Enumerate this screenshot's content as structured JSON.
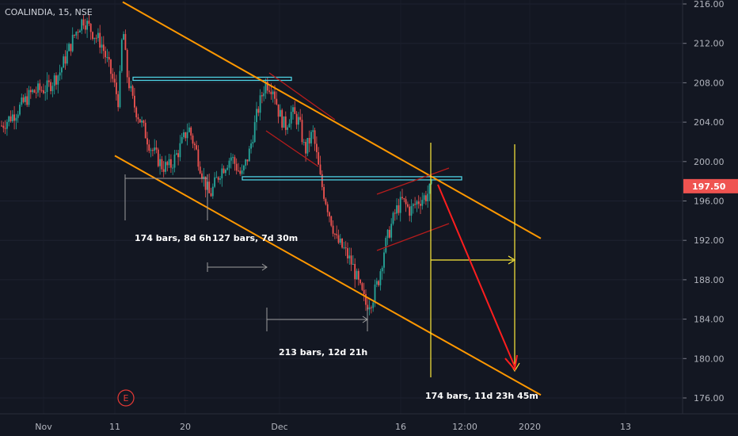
{
  "header": {
    "symbol": "COALINDIA, 15, NSE"
  },
  "colors": {
    "background": "#131722",
    "candle_up": "#26a69a",
    "candle_down": "#ef5350",
    "channel": "#ff9800",
    "zone": "#4dd0e1",
    "wedge": "#b71c1c",
    "vertical": "#ffeb3b",
    "target_arrow": "#ff1e1e",
    "measure": "#9e9e9e",
    "price_tag": "#ef5350"
  },
  "chart_data": {
    "type": "candlestick",
    "title": "",
    "xlabel": "",
    "ylabel": "",
    "ylim": [
      174.5,
      216.4
    ],
    "y_ticks": [
      "216.00",
      "212.00",
      "208.00",
      "204.00",
      "200.00",
      "196.00",
      "192.00",
      "188.00",
      "184.00",
      "180.00",
      "176.00"
    ],
    "x_ticks": [
      "Nov",
      "11",
      "20",
      "Dec",
      "16",
      "12:00",
      "2020",
      "13"
    ],
    "last_price": "197.50",
    "price_path_close": [
      [
        0,
        203.5
      ],
      [
        20,
        205
      ],
      [
        40,
        207
      ],
      [
        60,
        207.5
      ],
      [
        75,
        209
      ],
      [
        85,
        211
      ],
      [
        95,
        213
      ],
      [
        105,
        214.5
      ],
      [
        118,
        213
      ],
      [
        128,
        212
      ],
      [
        140,
        209
      ],
      [
        150,
        206
      ],
      [
        155,
        214
      ],
      [
        160,
        209
      ],
      [
        168,
        206
      ],
      [
        178,
        204
      ],
      [
        190,
        201.5
      ],
      [
        205,
        199.5
      ],
      [
        215,
        199.5
      ],
      [
        225,
        201
      ],
      [
        238,
        203.5
      ],
      [
        248,
        201
      ],
      [
        258,
        198
      ],
      [
        265,
        196.5
      ],
      [
        278,
        199
      ],
      [
        292,
        200.5
      ],
      [
        305,
        198.5
      ],
      [
        315,
        201
      ],
      [
        325,
        205
      ],
      [
        335,
        208
      ],
      [
        345,
        207.5
      ],
      [
        352,
        205
      ],
      [
        360,
        203.5
      ],
      [
        368,
        205
      ],
      [
        378,
        204
      ],
      [
        385,
        201
      ],
      [
        395,
        203
      ],
      [
        405,
        198
      ],
      [
        415,
        195
      ],
      [
        425,
        192
      ],
      [
        435,
        191
      ],
      [
        445,
        189.5
      ],
      [
        455,
        187
      ],
      [
        462,
        185.5
      ],
      [
        470,
        186
      ],
      [
        478,
        188
      ],
      [
        485,
        191
      ],
      [
        492,
        193
      ],
      [
        500,
        195
      ],
      [
        508,
        196
      ],
      [
        518,
        195
      ],
      [
        528,
        196
      ],
      [
        538,
        196.5
      ],
      [
        546,
        197.5
      ]
    ],
    "horizontal_zones": [
      {
        "price": 208.4,
        "from": 168,
        "to": 368
      },
      {
        "price": 198.3,
        "from": 306,
        "to": 583
      }
    ],
    "channel_upper": {
      "from": [
        155,
        216.2
      ],
      "to": [
        683,
        192.2
      ]
    },
    "channel_lower": {
      "from": [
        145,
        200.6
      ],
      "to": [
        683,
        176.3
      ]
    },
    "target_arrow": {
      "from_price": 198.3,
      "to_price": 179.2
    },
    "annotations": [
      "174 bars, 8d 6h",
      "127 bars, 7d 30m",
      "213 bars, 12d 21h",
      "174 bars, 11d 23h 45m"
    ],
    "event_marker": "E"
  }
}
